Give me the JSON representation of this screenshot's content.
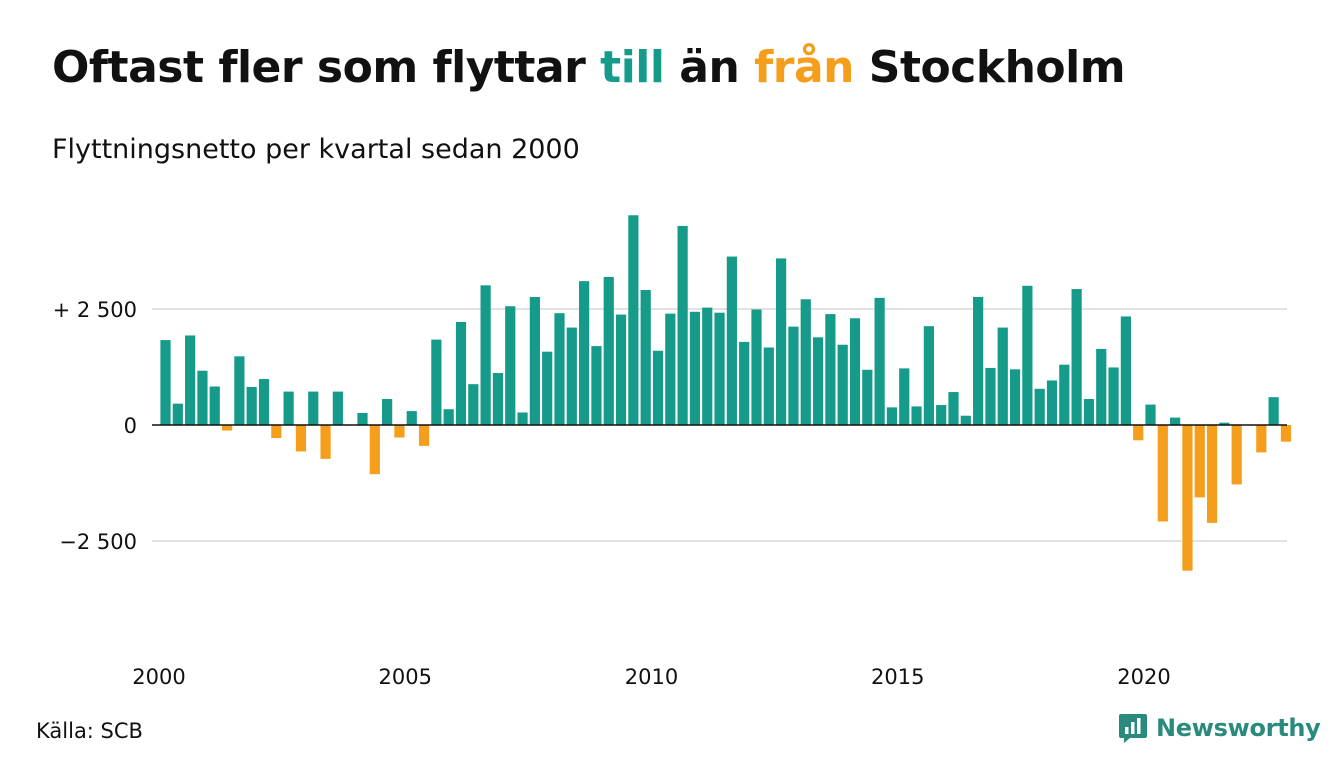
{
  "header": {
    "title_part1": "Oftast fler som flyttar ",
    "title_word_till": "till",
    "title_part2": " än ",
    "title_word_fran": "från",
    "title_part3": " Stockholm",
    "subtitle": "Flyttningsnetto per kvartal sedan 2000"
  },
  "footer": {
    "source": "Källa: SCB",
    "brand": "Newsworthy",
    "brand_icon": "bar-chart-logo-icon"
  },
  "colors": {
    "positive": "#169a8a",
    "negative": "#f59e1c",
    "brand": "#2b8a7e"
  },
  "chart_data": {
    "type": "bar",
    "title": "Oftast fler som flyttar till än från Stockholm",
    "subtitle": "Flyttningsnetto per kvartal sedan 2000",
    "xlabel": "",
    "ylabel": "",
    "ylim": [
      -4700,
      4700
    ],
    "y_ticks": [
      {
        "value": 2500,
        "label": "+ 2 500"
      },
      {
        "value": 0,
        "label": "0"
      },
      {
        "value": -2500,
        "label": "−2 500"
      }
    ],
    "x_ticks": [
      {
        "value": 2000,
        "label": "2000"
      },
      {
        "value": 2005,
        "label": "2005"
      },
      {
        "value": 2010,
        "label": "2010"
      },
      {
        "value": 2015,
        "label": "2015"
      },
      {
        "value": 2020,
        "label": "2020"
      }
    ],
    "grid": true,
    "start_year": 2000,
    "values": [
      1830,
      460,
      1930,
      1170,
      830,
      -120,
      1480,
      820,
      990,
      -280,
      720,
      -570,
      720,
      -730,
      720,
      0,
      260,
      -1060,
      560,
      -270,
      300,
      -450,
      1840,
      340,
      2220,
      880,
      3010,
      1120,
      2560,
      270,
      2760,
      1580,
      2410,
      2100,
      3100,
      1700,
      3190,
      2380,
      4520,
      2910,
      1600,
      2400,
      4290,
      2440,
      2530,
      2420,
      3630,
      1790,
      2490,
      1670,
      3590,
      2120,
      2710,
      1890,
      2390,
      1730,
      2300,
      1190,
      2740,
      380,
      1220,
      400,
      2130,
      430,
      710,
      200,
      2760,
      1230,
      2100,
      1200,
      3000,
      780,
      960,
      1300,
      2930,
      560,
      1640,
      1240,
      2340,
      -330,
      440,
      -2080,
      160,
      -3140,
      -1560,
      -2110,
      50,
      -1280,
      0,
      -590,
      600,
      -360
    ]
  }
}
